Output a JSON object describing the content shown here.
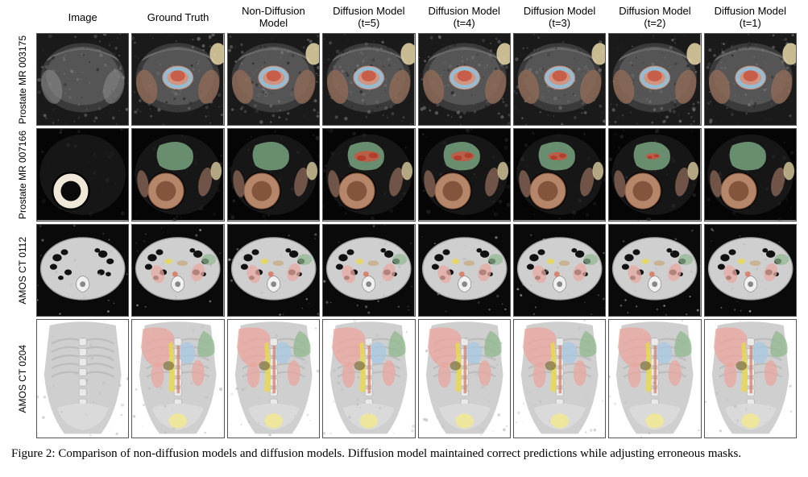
{
  "columns": [
    "Image",
    "Ground Truth",
    "Non-Diffusion Model",
    "Diffusion Model (t=5)",
    "Diffusion Model (t=4)",
    "Diffusion Model (t=3)",
    "Diffusion Model (t=2)",
    "Diffusion Model (t=1)"
  ],
  "rows": [
    "Prostate MR 003175",
    "Prostate MR 007166",
    "AMOS CT 0112",
    "AMOS CT 0204"
  ],
  "caption": "Figure 2: Comparison of non-diffusion models and diffusion models. Diffusion model maintained correct predictions while adjusting erroneous masks.",
  "palette": {
    "mri_bg": "#1a1a1a",
    "ct_bg": "#0a0a0a",
    "ct_body": "#cfcfcf",
    "ct_body_edge": "#9f9f9f",
    "prostate_pink": "#e8a08a",
    "prostate_red": "#c45843",
    "prostate_blue": "#89c3e0",
    "femur_brown": "#8d6a58",
    "femur_beige": "#e8d8a8",
    "bladder_green": "#7ba883",
    "rectum_brown": "#a56a4a",
    "liver_pink": "#e8a8a0",
    "kidney_tan": "#c4a878",
    "spleen_green": "#8fb890",
    "aorta_red": "#d87860",
    "gallbladder_yellow": "#e8d850",
    "stomach_blue": "#a8c8e0",
    "pancreas_olive": "#8a7a4a",
    "vertebra": "#e0e0e0",
    "bladder_yellow": "#f0e890"
  },
  "row1": {
    "base_type": "prostate_mri_axial",
    "show_red_artifact_cols": [],
    "blue_ring_cols": [
      1,
      2,
      3,
      4,
      5,
      6,
      7
    ]
  },
  "row2": {
    "base_type": "pelvic_mri_with_coil",
    "red_blob_cols": [
      3,
      4,
      5,
      6
    ],
    "red_blob_size": {
      "3": 1.0,
      "4": 0.9,
      "5": 0.75,
      "6": 0.55
    }
  },
  "row3": {
    "base_type": "amos_ct_axial",
    "overlay_cols": [
      1,
      2,
      3,
      4,
      5,
      6,
      7
    ]
  },
  "row4": {
    "base_type": "amos_ct_coronal",
    "overlay_cols": [
      1,
      2,
      3,
      4,
      5,
      6,
      7
    ]
  }
}
